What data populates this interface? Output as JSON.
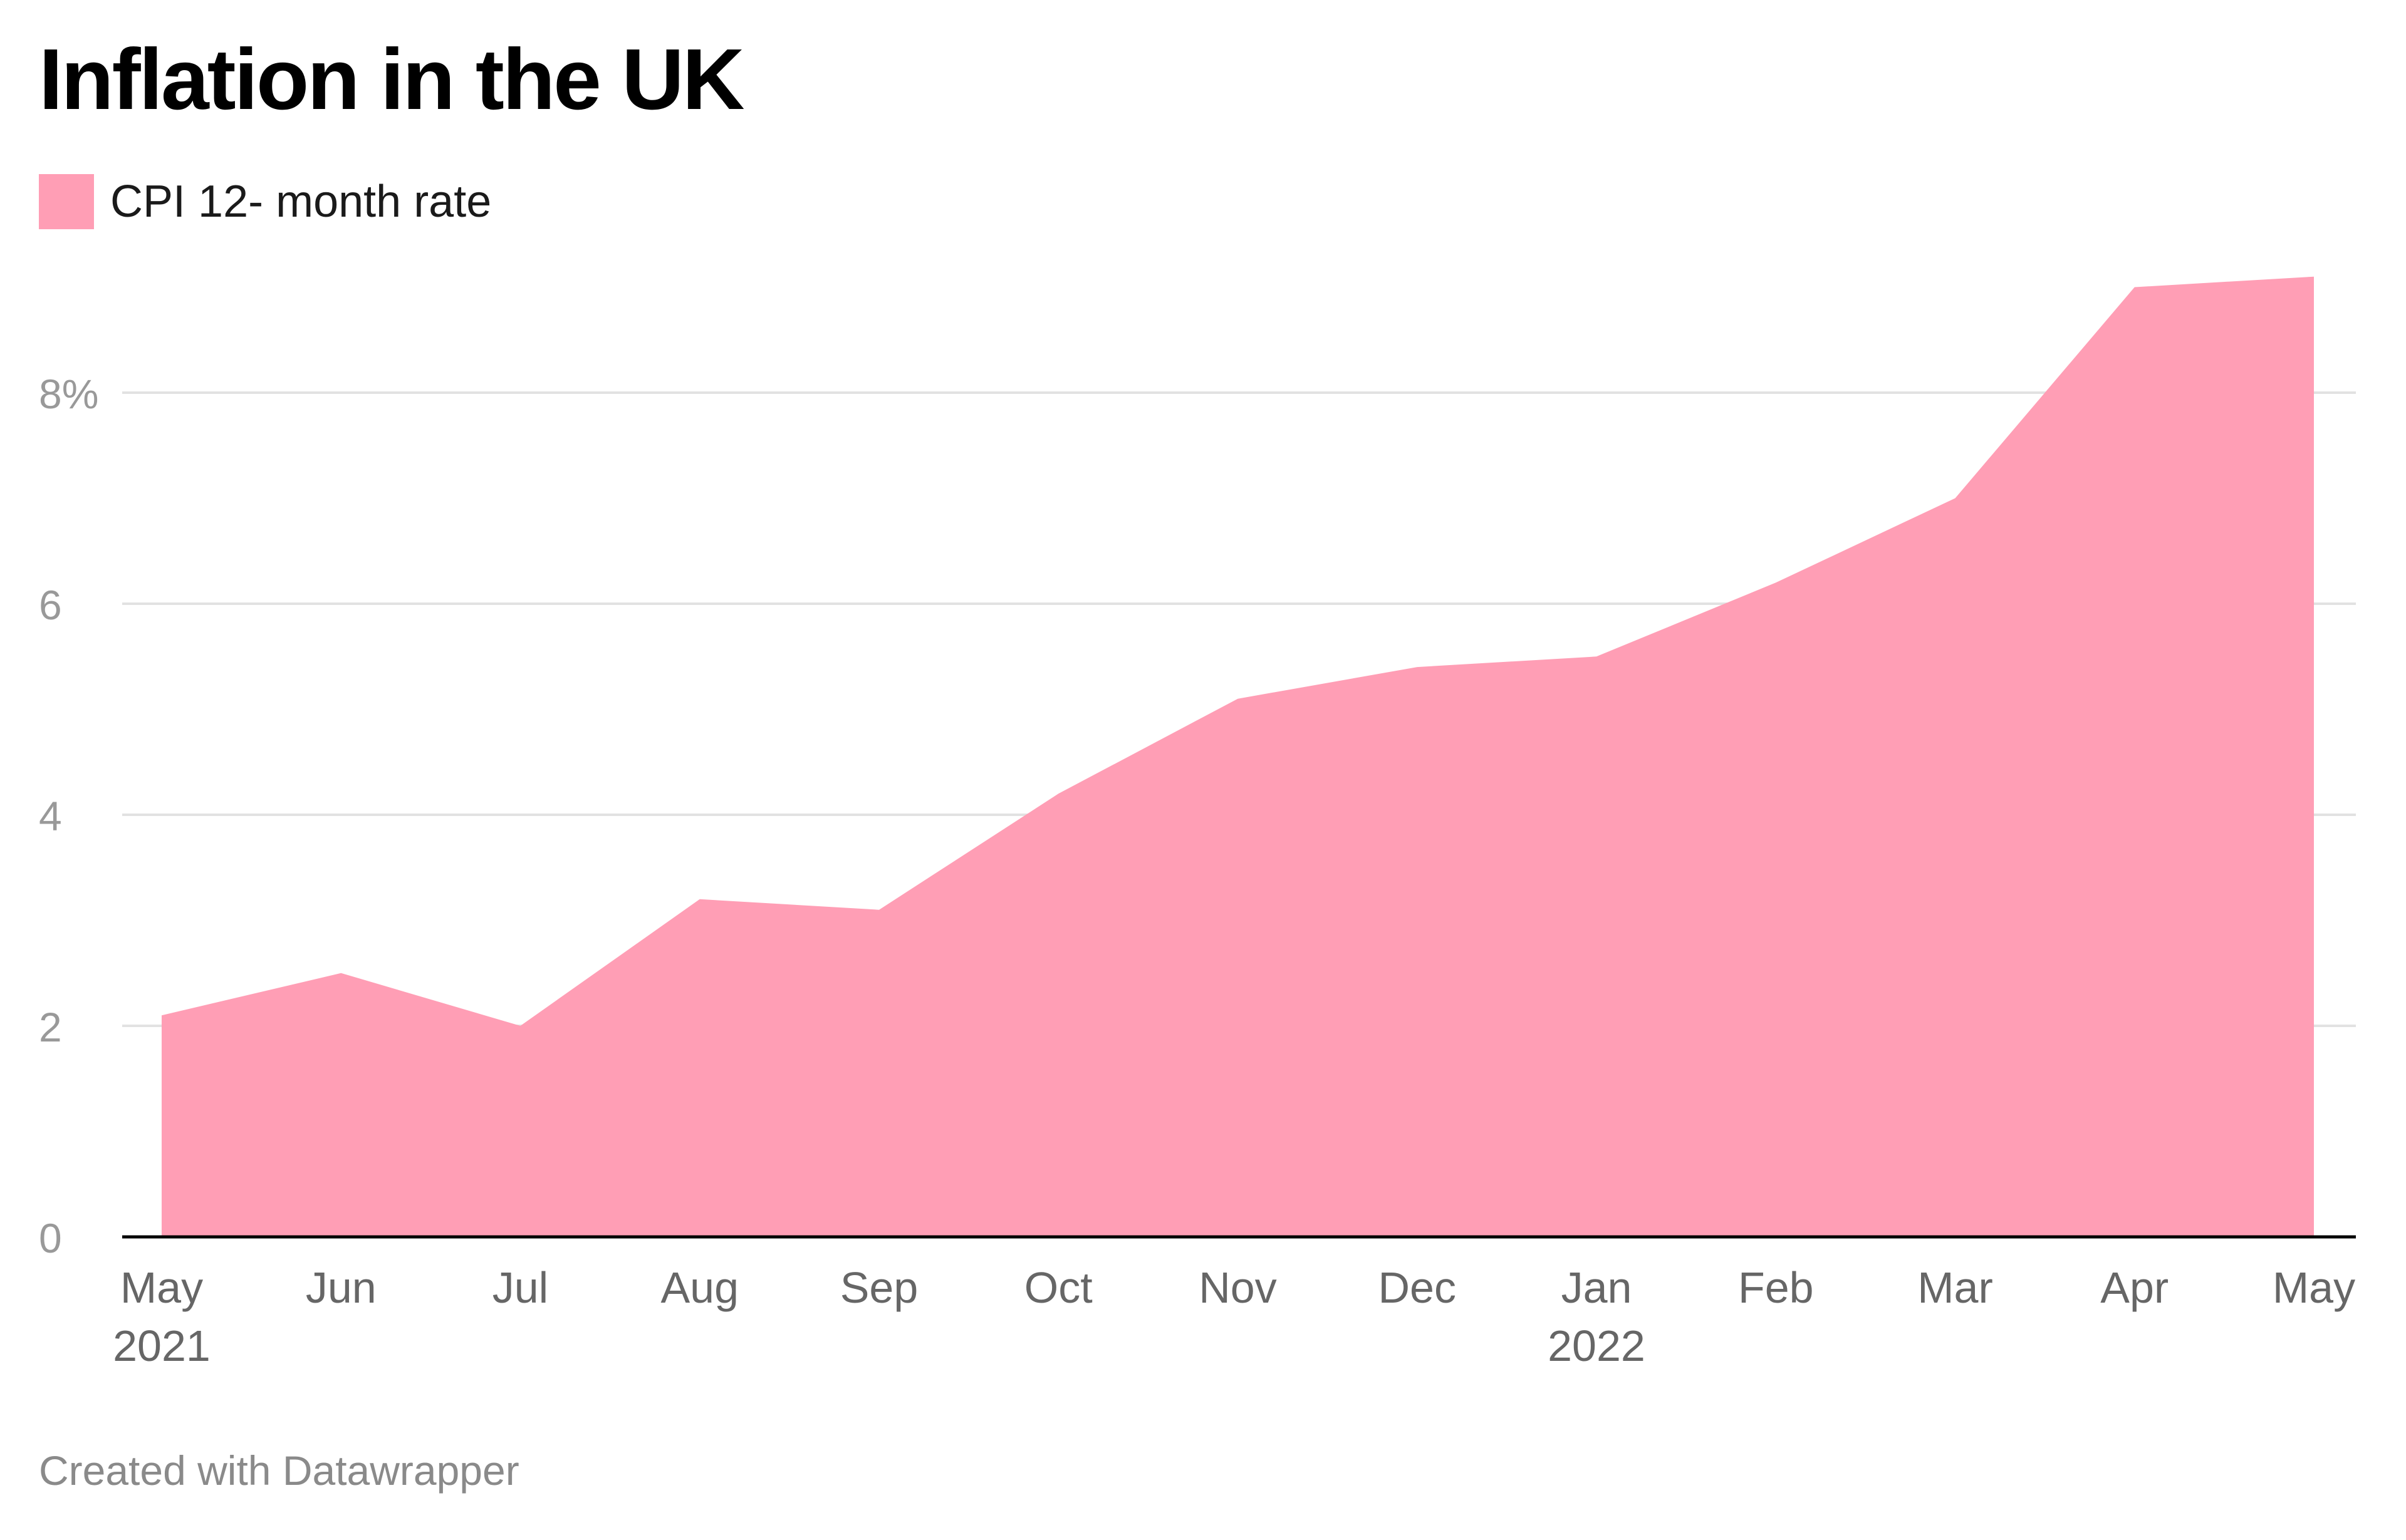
{
  "title": "Inflation in the UK",
  "footer": "Created with Datawrapper",
  "colors": {
    "area": "#ff9eb5",
    "grid": "#e2e2e2",
    "axis": "#000000",
    "tick_text": "#999999",
    "x_text": "#666666"
  },
  "chart_data": {
    "type": "area",
    "title": "Inflation in the UK",
    "xlabel": "",
    "ylabel": "",
    "series": [
      {
        "name": "CPI 12- month rate",
        "values": [
          2.1,
          2.5,
          2.0,
          3.2,
          3.1,
          4.2,
          5.1,
          5.4,
          5.5,
          6.2,
          7.0,
          9.0,
          9.1
        ]
      }
    ],
    "categories": [
      "2021-05",
      "2021-06",
      "2021-07",
      "2021-08",
      "2021-09",
      "2021-10",
      "2021-11",
      "2021-12",
      "2022-01",
      "2022-02",
      "2022-03",
      "2022-04",
      "2022-05"
    ],
    "x_tick_labels": [
      {
        "month": "May",
        "year": "2021"
      },
      {
        "month": "Jun",
        "year": ""
      },
      {
        "month": "Jul",
        "year": ""
      },
      {
        "month": "Aug",
        "year": ""
      },
      {
        "month": "Sep",
        "year": ""
      },
      {
        "month": "Oct",
        "year": ""
      },
      {
        "month": "Nov",
        "year": ""
      },
      {
        "month": "Dec",
        "year": ""
      },
      {
        "month": "Jan",
        "year": "2022"
      },
      {
        "month": "Feb",
        "year": ""
      },
      {
        "month": "Mar",
        "year": ""
      },
      {
        "month": "Apr",
        "year": ""
      },
      {
        "month": "May",
        "year": ""
      }
    ],
    "y_ticks": [
      {
        "value": 0,
        "label": "0"
      },
      {
        "value": 2,
        "label": "2"
      },
      {
        "value": 4,
        "label": "4"
      },
      {
        "value": 6,
        "label": "6"
      },
      {
        "value": 8,
        "label": "8%"
      }
    ],
    "ylim": [
      0,
      9.1
    ],
    "grid": true,
    "legend": "top-left"
  }
}
